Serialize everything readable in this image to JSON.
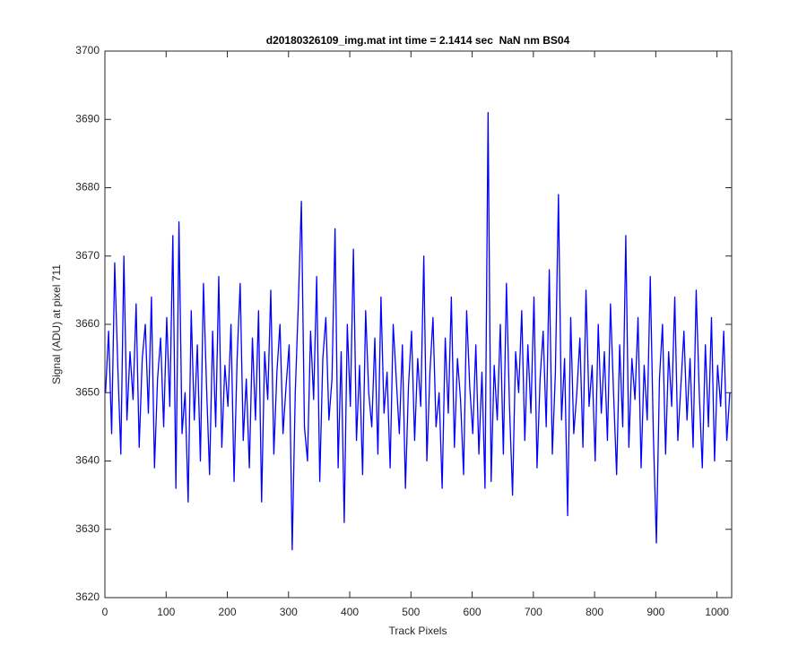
{
  "chart_data": {
    "type": "line",
    "title": "d20180326109_img.mat int time = 2.1414 sec  NaN nm BS04",
    "xlabel": "Track Pixels",
    "ylabel": "Signal (ADU) at pixel 711",
    "color": "#0000ff",
    "xlim": [
      0,
      1024
    ],
    "xticks": [
      0,
      100,
      200,
      300,
      400,
      500,
      600,
      700,
      800,
      900,
      1000
    ],
    "ylim": [
      3620,
      3700
    ],
    "yticks": [
      3620,
      3630,
      3640,
      3650,
      3660,
      3670,
      3680,
      3690,
      3700
    ],
    "x": [
      1,
      6,
      11,
      16,
      21,
      26,
      31,
      36,
      41,
      46,
      51,
      56,
      61,
      66,
      71,
      76,
      81,
      86,
      91,
      96,
      101,
      106,
      111,
      116,
      121,
      126,
      131,
      136,
      141,
      146,
      151,
      156,
      161,
      166,
      171,
      176,
      181,
      186,
      191,
      196,
      201,
      206,
      211,
      216,
      221,
      226,
      231,
      236,
      241,
      246,
      251,
      256,
      261,
      266,
      271,
      276,
      281,
      286,
      291,
      296,
      301,
      306,
      311,
      316,
      321,
      326,
      331,
      336,
      341,
      346,
      351,
      356,
      361,
      366,
      371,
      376,
      381,
      386,
      391,
      396,
      401,
      406,
      411,
      416,
      421,
      426,
      431,
      436,
      441,
      446,
      451,
      456,
      461,
      466,
      471,
      476,
      481,
      486,
      491,
      496,
      501,
      506,
      511,
      516,
      521,
      526,
      531,
      536,
      541,
      546,
      551,
      556,
      561,
      566,
      571,
      576,
      581,
      586,
      591,
      596,
      601,
      606,
      611,
      616,
      621,
      626,
      631,
      636,
      641,
      646,
      651,
      656,
      661,
      666,
      671,
      676,
      681,
      686,
      691,
      696,
      701,
      706,
      711,
      716,
      721,
      726,
      731,
      736,
      741,
      746,
      751,
      756,
      761,
      766,
      771,
      776,
      781,
      786,
      791,
      796,
      801,
      806,
      811,
      816,
      821,
      826,
      831,
      836,
      841,
      846,
      851,
      856,
      861,
      866,
      871,
      876,
      881,
      886,
      891,
      896,
      901,
      906,
      911,
      916,
      921,
      926,
      931,
      936,
      941,
      946,
      951,
      956,
      961,
      966,
      971,
      976,
      981,
      986,
      991,
      996,
      1001,
      1006,
      1011,
      1016,
      1021
    ],
    "values": [
      3650,
      3659,
      3644,
      3669,
      3654,
      3641,
      3670,
      3646,
      3656,
      3649,
      3663,
      3642,
      3655,
      3660,
      3647,
      3664,
      3639,
      3652,
      3658,
      3645,
      3661,
      3648,
      3673,
      3636,
      3675,
      3644,
      3650,
      3634,
      3662,
      3646,
      3657,
      3640,
      3666,
      3651,
      3638,
      3659,
      3645,
      3667,
      3642,
      3654,
      3648,
      3660,
      3637,
      3655,
      3666,
      3643,
      3652,
      3639,
      3658,
      3646,
      3662,
      3634,
      3656,
      3649,
      3665,
      3641,
      3653,
      3660,
      3644,
      3651,
      3657,
      3627,
      3650,
      3663,
      3678,
      3645,
      3640,
      3659,
      3649,
      3667,
      3637,
      3655,
      3661,
      3646,
      3652,
      3674,
      3639,
      3656,
      3631,
      3660,
      3648,
      3671,
      3643,
      3654,
      3638,
      3662,
      3650,
      3645,
      3658,
      3641,
      3664,
      3647,
      3653,
      3639,
      3660,
      3652,
      3644,
      3657,
      3636,
      3651,
      3659,
      3643,
      3655,
      3648,
      3670,
      3640,
      3653,
      3661,
      3645,
      3650,
      3636,
      3658,
      3647,
      3664,
      3642,
      3655,
      3649,
      3638,
      3662,
      3651,
      3644,
      3657,
      3641,
      3653,
      3636,
      3691,
      3637,
      3654,
      3646,
      3660,
      3641,
      3666,
      3648,
      3635,
      3656,
      3650,
      3662,
      3643,
      3657,
      3647,
      3664,
      3639,
      3652,
      3659,
      3645,
      3668,
      3641,
      3653,
      3679,
      3646,
      3655,
      3632,
      3661,
      3644,
      3650,
      3658,
      3642,
      3665,
      3648,
      3654,
      3640,
      3660,
      3647,
      3656,
      3643,
      3663,
      3650,
      3638,
      3657,
      3645,
      3673,
      3642,
      3655,
      3649,
      3661,
      3639,
      3654,
      3646,
      3667,
      3644,
      3628,
      3652,
      3660,
      3641,
      3656,
      3648,
      3664,
      3643,
      3651,
      3659,
      3646,
      3655,
      3642,
      3665,
      3650,
      3639,
      3657,
      3645,
      3661,
      3640,
      3654,
      3648,
      3659,
      3643,
      3650
    ]
  }
}
